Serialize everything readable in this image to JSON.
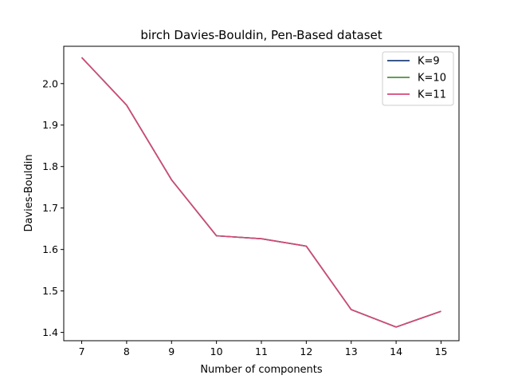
{
  "chart_data": {
    "type": "line",
    "title": "birch Davies-Bouldin, Pen-Based dataset",
    "xlabel": "Number of components",
    "ylabel": "Davies-Bouldin",
    "x": [
      7,
      8,
      9,
      10,
      11,
      12,
      13,
      14,
      15
    ],
    "xticks": [
      "7",
      "8",
      "9",
      "10",
      "11",
      "12",
      "13",
      "14",
      "15"
    ],
    "yticks": [
      1.4,
      1.5,
      1.6,
      1.7,
      1.8,
      1.9,
      2.0
    ],
    "ytick_labels": [
      "1.4",
      "1.5",
      "1.6",
      "1.7",
      "1.8",
      "1.9",
      "2.0"
    ],
    "xlim": [
      6.6,
      15.4
    ],
    "ylim": [
      1.38,
      2.09
    ],
    "grid": false,
    "legend_position": "top-right",
    "series": [
      {
        "name": "K=9",
        "color": "#1f3f7a",
        "values": [
          2.063,
          1.948,
          1.768,
          1.633,
          1.626,
          1.608,
          1.455,
          1.413,
          1.451
        ]
      },
      {
        "name": "K=10",
        "color": "#4f8f3f",
        "values": [
          2.063,
          1.948,
          1.768,
          1.633,
          1.626,
          1.608,
          1.455,
          1.413,
          1.451
        ]
      },
      {
        "name": "K=11",
        "color": "#d6477a",
        "values": [
          2.063,
          1.948,
          1.768,
          1.633,
          1.626,
          1.608,
          1.455,
          1.413,
          1.451
        ]
      }
    ]
  }
}
